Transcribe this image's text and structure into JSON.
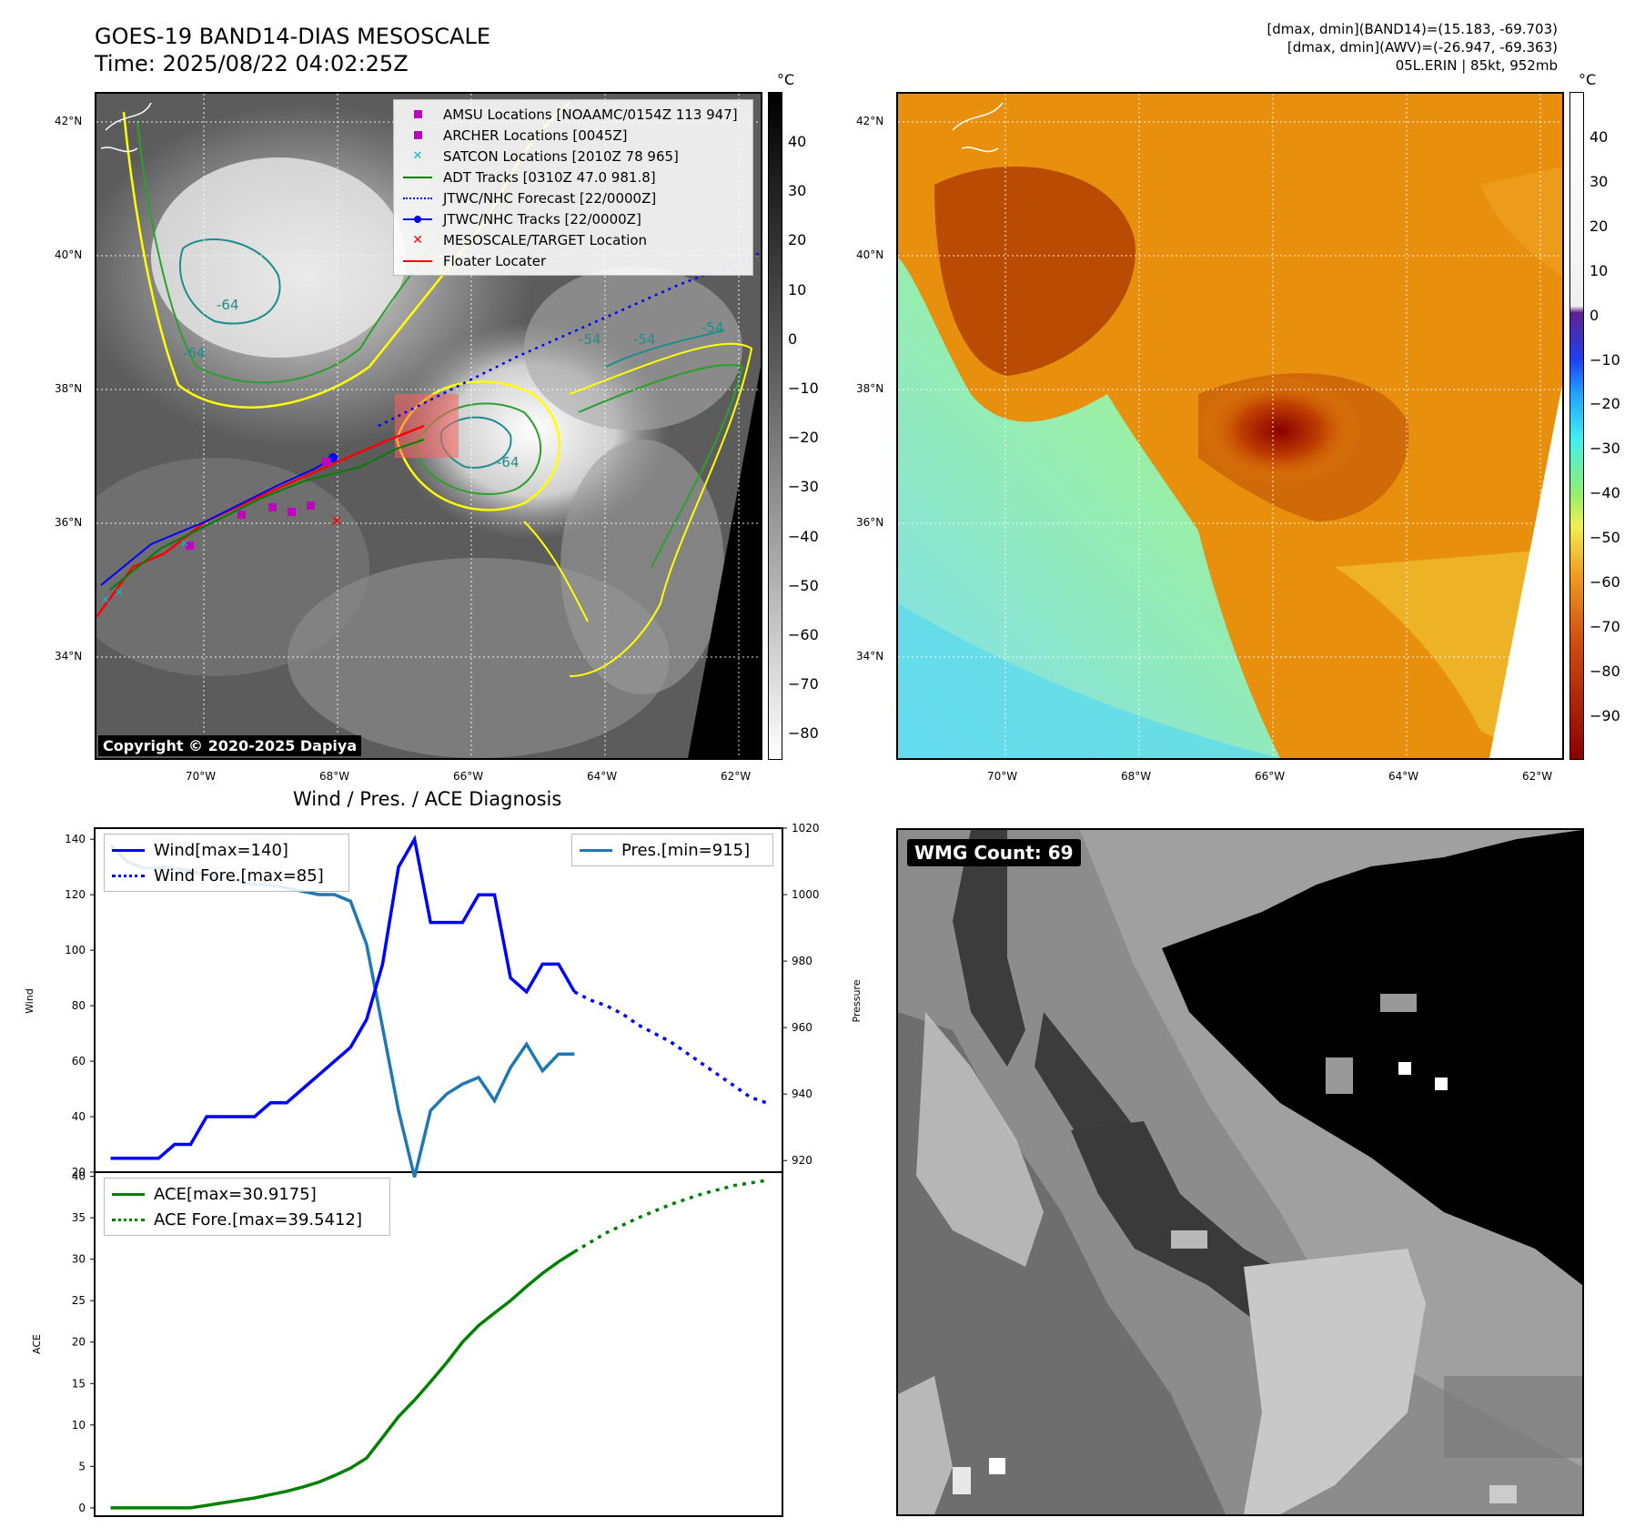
{
  "header": {
    "title_line1": "GOES-19 BAND14-DIAS MESOSCALE",
    "title_line2": "Time: 2025/08/22 04:02:25Z",
    "info_line1": "[dmax, dmin](BAND14)=(15.183, -69.703)",
    "info_line2": "[dmax, dmin](AWV)=(-26.947, -69.363)",
    "info_line3": "05L.ERIN | 85kt, 952mb"
  },
  "map": {
    "lat_labels": [
      "42°N",
      "40°N",
      "38°N",
      "36°N",
      "34°N"
    ],
    "lon_labels": [
      "70°W",
      "68°W",
      "66°W",
      "64°W",
      "62°W"
    ],
    "contour_labels": [
      "-64",
      "-64",
      "-64",
      "-54",
      "-54",
      "-54"
    ],
    "copyright": "Copyright © 2020-2025 Dapiya",
    "legend": [
      {
        "label": "AMSU Locations [NOAAMC/0154Z 113 947]",
        "symbol": "square",
        "color": "#c000c0"
      },
      {
        "label": "ARCHER Locations [0045Z]",
        "symbol": "square",
        "color": "#c000c0"
      },
      {
        "label": "SATCON Locations [2010Z 78 965]",
        "symbol": "cross",
        "color": "#00c0c0"
      },
      {
        "label": "ADT Tracks [0310Z 47.0 981.8]",
        "symbol": "line",
        "color": "#008000"
      },
      {
        "label": "JTWC/NHC Forecast [22/0000Z]",
        "symbol": "dotted",
        "color": "#0000ff"
      },
      {
        "label": "JTWC/NHC Tracks [22/0000Z]",
        "symbol": "dotline",
        "color": "#0000ff"
      },
      {
        "label": "MESOSCALE/TARGET Location",
        "symbol": "x",
        "color": "#ff0000"
      },
      {
        "label": "Floater Locater",
        "symbol": "line",
        "color": "#ff0000"
      }
    ]
  },
  "colorbar_gray": {
    "unit": "°C",
    "ticks": [
      "40",
      "30",
      "20",
      "10",
      "0",
      "−10",
      "−20",
      "−30",
      "−40",
      "−50",
      "−60",
      "−70",
      "−80"
    ]
  },
  "colorbar_color": {
    "unit": "°C",
    "ticks": [
      "40",
      "30",
      "20",
      "10",
      "0",
      "−10",
      "−20",
      "−30",
      "−40",
      "−50",
      "−60",
      "−70",
      "−80",
      "−90"
    ]
  },
  "diagnosis": {
    "title": "Wind / Pres. / ACE Diagnosis",
    "wind_ylabel": "Wind",
    "pres_ylabel": "Pressure",
    "ace_ylabel": "ACE",
    "wind_ticks": [
      "140",
      "120",
      "100",
      "80",
      "60",
      "40",
      "20"
    ],
    "pres_ticks": [
      "1020",
      "1000",
      "980",
      "960",
      "940",
      "920"
    ],
    "ace_ticks": [
      "40",
      "35",
      "30",
      "25",
      "20",
      "15",
      "10",
      "5",
      "0"
    ],
    "legend_wind": "Wind[max=140]",
    "legend_wind_fore": "Wind Fore.[max=85]",
    "legend_pres": "Pres.[min=915]",
    "legend_ace": "ACE[max=30.9175]",
    "legend_ace_fore": "ACE Fore.[max=39.5412]"
  },
  "wmg": {
    "label": "WMG Count: 69"
  },
  "chart_data": [
    {
      "type": "line",
      "title": "Wind / Pres. / ACE Diagnosis",
      "ylabel": "Wind",
      "ylim": [
        20,
        145
      ],
      "series": [
        {
          "name": "Wind[max=140]",
          "color": "#0000ff",
          "x": [
            0,
            6,
            12,
            18,
            24,
            30,
            36,
            42,
            48,
            54,
            60,
            66,
            72,
            78,
            84,
            90,
            96,
            102,
            108,
            114,
            120,
            126,
            132,
            138,
            144,
            150,
            156,
            162,
            168,
            174
          ],
          "values": [
            25,
            25,
            25,
            25,
            30,
            30,
            40,
            40,
            40,
            40,
            45,
            45,
            50,
            55,
            60,
            65,
            75,
            95,
            130,
            140,
            110,
            110,
            110,
            120,
            120,
            90,
            85,
            95,
            95,
            85
          ]
        },
        {
          "name": "Wind Fore.[max=85]",
          "color": "#0000ff",
          "dotted": true,
          "x": [
            174,
            180,
            186,
            192,
            198,
            204,
            210,
            216,
            222,
            228,
            234,
            240,
            246
          ],
          "values": [
            85,
            82,
            80,
            77,
            73,
            70,
            67,
            63,
            59,
            55,
            51,
            47,
            45
          ]
        }
      ]
    },
    {
      "type": "line",
      "ylabel": "Pressure",
      "ylim": [
        915,
        1020
      ],
      "series": [
        {
          "name": "Pres.[min=915]",
          "color": "#1f77b4",
          "x": [
            0,
            6,
            12,
            18,
            24,
            30,
            36,
            42,
            48,
            54,
            60,
            66,
            72,
            78,
            84,
            90,
            96,
            102,
            108,
            114,
            120,
            126,
            132,
            138,
            144,
            150,
            156,
            162,
            168,
            174
          ],
          "values": [
            1015,
            1010,
            1008,
            1008,
            1008,
            1007,
            1006,
            1005,
            1004,
            1003,
            1003,
            1002,
            1001,
            1000,
            1000,
            998,
            985,
            960,
            935,
            915,
            935,
            940,
            943,
            945,
            938,
            948,
            955,
            947,
            952,
            952
          ]
        }
      ]
    },
    {
      "type": "line",
      "ylabel": "ACE",
      "ylim": [
        0,
        41
      ],
      "series": [
        {
          "name": "ACE[max=30.9175]",
          "color": "#008000",
          "x": [
            0,
            6,
            12,
            18,
            24,
            30,
            36,
            42,
            48,
            54,
            60,
            66,
            72,
            78,
            84,
            90,
            96,
            102,
            108,
            114,
            120,
            126,
            132,
            138,
            144,
            150,
            156,
            162,
            168,
            174
          ],
          "values": [
            0,
            0,
            0,
            0,
            0,
            0,
            0.3,
            0.6,
            0.9,
            1.2,
            1.6,
            2,
            2.5,
            3.1,
            3.9,
            4.8,
            6,
            8.5,
            11,
            13,
            15.2,
            17.5,
            20,
            22,
            23.5,
            25,
            26.7,
            28.3,
            29.7,
            30.9
          ]
        },
        {
          "name": "ACE Fore.[max=39.5412]",
          "color": "#008000",
          "dotted": true,
          "x": [
            174,
            186,
            198,
            210,
            222,
            234,
            246
          ],
          "values": [
            30.9,
            33.2,
            35,
            36.6,
            37.9,
            38.9,
            39.5
          ]
        }
      ]
    }
  ]
}
